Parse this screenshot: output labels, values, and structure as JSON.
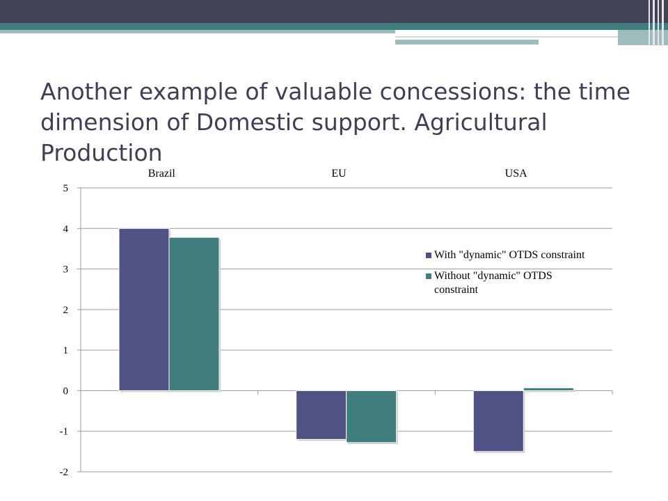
{
  "slide": {
    "title": "Another example of valuable concessions: the time dimension of Domestic support. Agricultural Production"
  },
  "colors": {
    "top_bar": "#424456",
    "accent": "#3f7d7e",
    "title_text": "#3e3f52"
  },
  "chart_data": {
    "type": "bar",
    "categories": [
      "Brazil",
      "EU",
      "USA"
    ],
    "series": [
      {
        "name": "With \"dynamic\" OTDS constraint",
        "color": "#525186",
        "values": [
          4.0,
          -1.2,
          -1.5
        ]
      },
      {
        "name": "Without \"dynamic\" OTDS constraint",
        "color": "#3f7d7e",
        "values": [
          3.78,
          -1.28,
          0.07
        ]
      }
    ],
    "ylim": [
      -2,
      5
    ],
    "yticks": [
      5,
      4,
      3,
      2,
      1,
      0,
      -1,
      -2
    ],
    "grid": true,
    "category_labels_position": "top",
    "legend_position": "right"
  }
}
